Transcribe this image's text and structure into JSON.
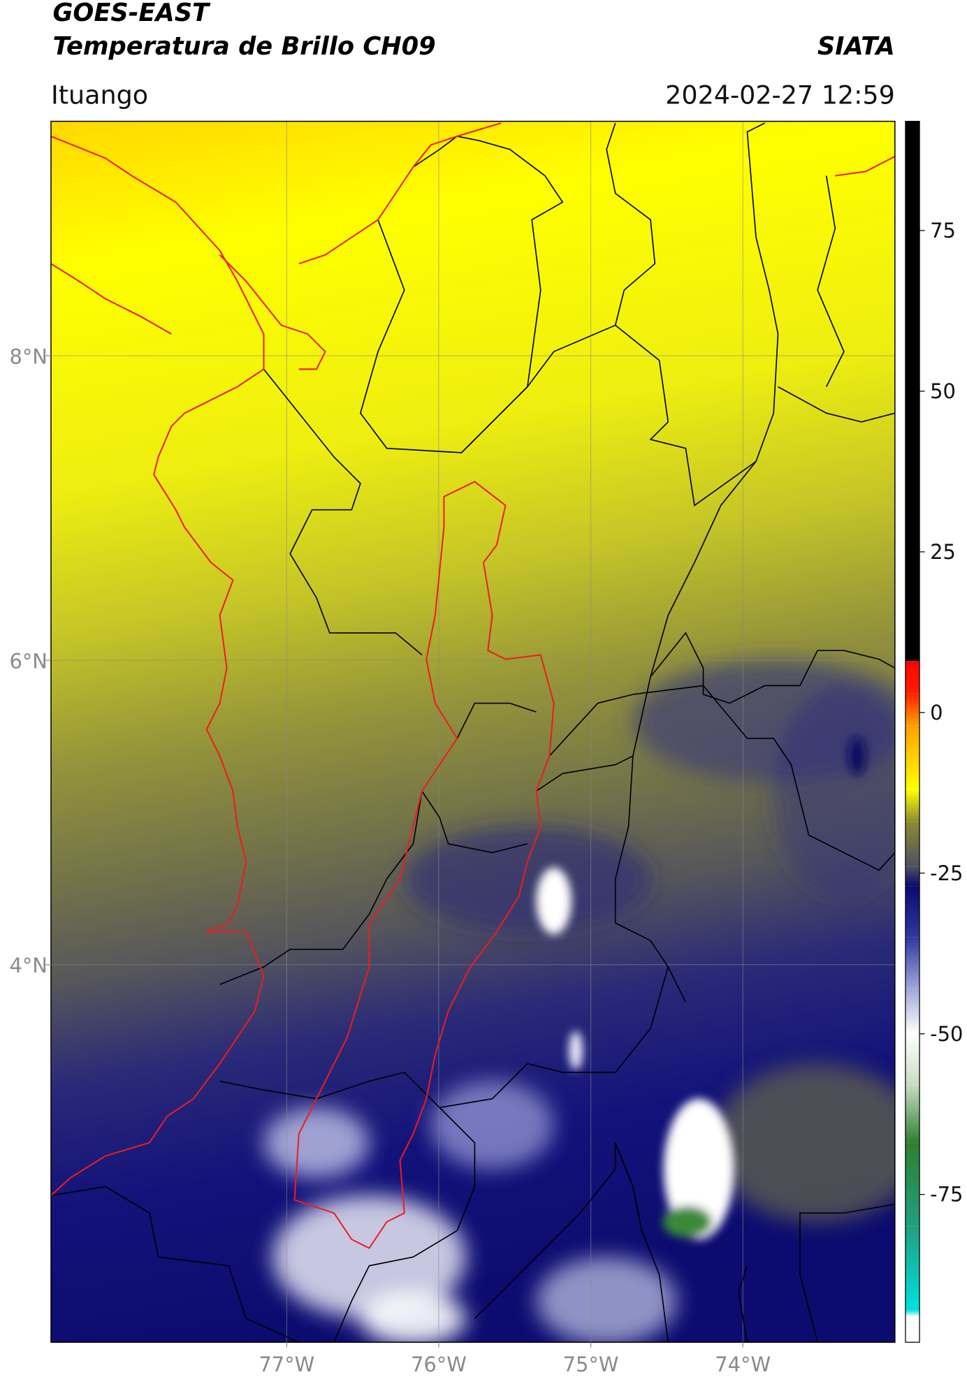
{
  "header": {
    "title": "GOES-EAST",
    "subtitle": "Temperatura de Brillo CH09",
    "source": "SIATA",
    "region": "Ituango",
    "timestamp": "2024-02-27 12:59"
  },
  "map": {
    "xlim": [
      -78.55,
      -73.0
    ],
    "ylim": [
      1.52,
      9.54
    ],
    "xticks": [
      {
        "value": -77,
        "label": "77°W"
      },
      {
        "value": -76,
        "label": "76°W"
      },
      {
        "value": -75,
        "label": "75°W"
      },
      {
        "value": -74,
        "label": "74°W"
      }
    ],
    "yticks": [
      {
        "value": 8,
        "label": "8°N"
      },
      {
        "value": 6,
        "label": "6°N"
      },
      {
        "value": 4,
        "label": "4°N"
      }
    ],
    "grid": true
  },
  "colorbar": {
    "lim": [
      -98,
      92
    ],
    "ticks": [
      75,
      50,
      25,
      0,
      -25,
      -50,
      -75
    ],
    "stops": [
      {
        "value": -98,
        "color": "#ffffff"
      },
      {
        "value": -94,
        "color": "#ffffff"
      },
      {
        "value": -93,
        "color": "#00e0e0"
      },
      {
        "value": -80,
        "color": "#20a080"
      },
      {
        "value": -67,
        "color": "#2e8030"
      },
      {
        "value": -58,
        "color": "#c8dcc0"
      },
      {
        "value": -50,
        "color": "#ffffff"
      },
      {
        "value": -43,
        "color": "#a0a8d8"
      },
      {
        "value": -35,
        "color": "#3038a0"
      },
      {
        "value": -27,
        "color": "#0a0a70"
      },
      {
        "value": -24,
        "color": "#505060"
      },
      {
        "value": -17,
        "color": "#8c8c30"
      },
      {
        "value": -12,
        "color": "#ffff00"
      },
      {
        "value": -2,
        "color": "#ffa000"
      },
      {
        "value": 3,
        "color": "#ff2000"
      },
      {
        "value": 8,
        "color": "#ff0000"
      },
      {
        "value": 8,
        "color": "#000000"
      },
      {
        "value": 92,
        "color": "#000000"
      }
    ]
  }
}
